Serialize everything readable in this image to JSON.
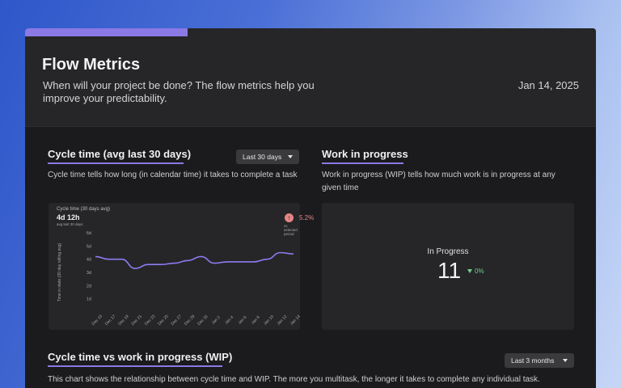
{
  "header": {
    "title": "Flow Metrics",
    "subtitle": "When will your project be done? The flow metrics help you improve your predictability.",
    "date": "Jan 14, 2025"
  },
  "cycle_time": {
    "title": "Cycle time (avg last 30 days)",
    "dropdown": "Last 30 days",
    "description": "Cycle time tells how long (in calendar time) it takes to complete a task",
    "chart_title": "Cycle time (30 days avg)",
    "value": "4d 12h",
    "value_sub": "avg last 30 days",
    "trend_value": "5.2%",
    "trend_sub": "vs selected period",
    "trend_icon": "arrow-up-icon"
  },
  "wip": {
    "title": "Work in progress",
    "description": "Work in progress (WIP) tells how much work is in progress at any given time",
    "label": "In Progress",
    "value": "11",
    "trend": "0%"
  },
  "scatter": {
    "title": "Cycle time vs work in progress (WIP)",
    "dropdown": "Last 3 months",
    "description": "This chart shows the relationship between cycle time and WIP. The more you multitask, the longer it takes to complete any individual task."
  },
  "chart_data": {
    "type": "line",
    "title": "Cycle time (30 days avg)",
    "ylabel": "Time in state (30 day rolling avg)",
    "xlabel": "",
    "ylim": [
      0,
      6
    ],
    "y_ticks": [
      "1d",
      "2d",
      "3d",
      "4d",
      "5d",
      "6d"
    ],
    "categories": [
      "Dec 15",
      "Dec 17",
      "Dec 19",
      "Dec 21",
      "Dec 23",
      "Dec 25",
      "Dec 27",
      "Dec 29",
      "Dec 31",
      "Jan 2",
      "Jan 4",
      "Jan 6",
      "Jan 8",
      "Jan 10",
      "Jan 12",
      "Jan 14"
    ],
    "values": [
      4.2,
      4.0,
      4.0,
      3.3,
      3.6,
      3.6,
      3.7,
      3.9,
      4.2,
      3.7,
      3.8,
      3.8,
      3.8,
      4.0,
      4.5,
      4.4
    ],
    "line_color": "#8b7cf0"
  }
}
